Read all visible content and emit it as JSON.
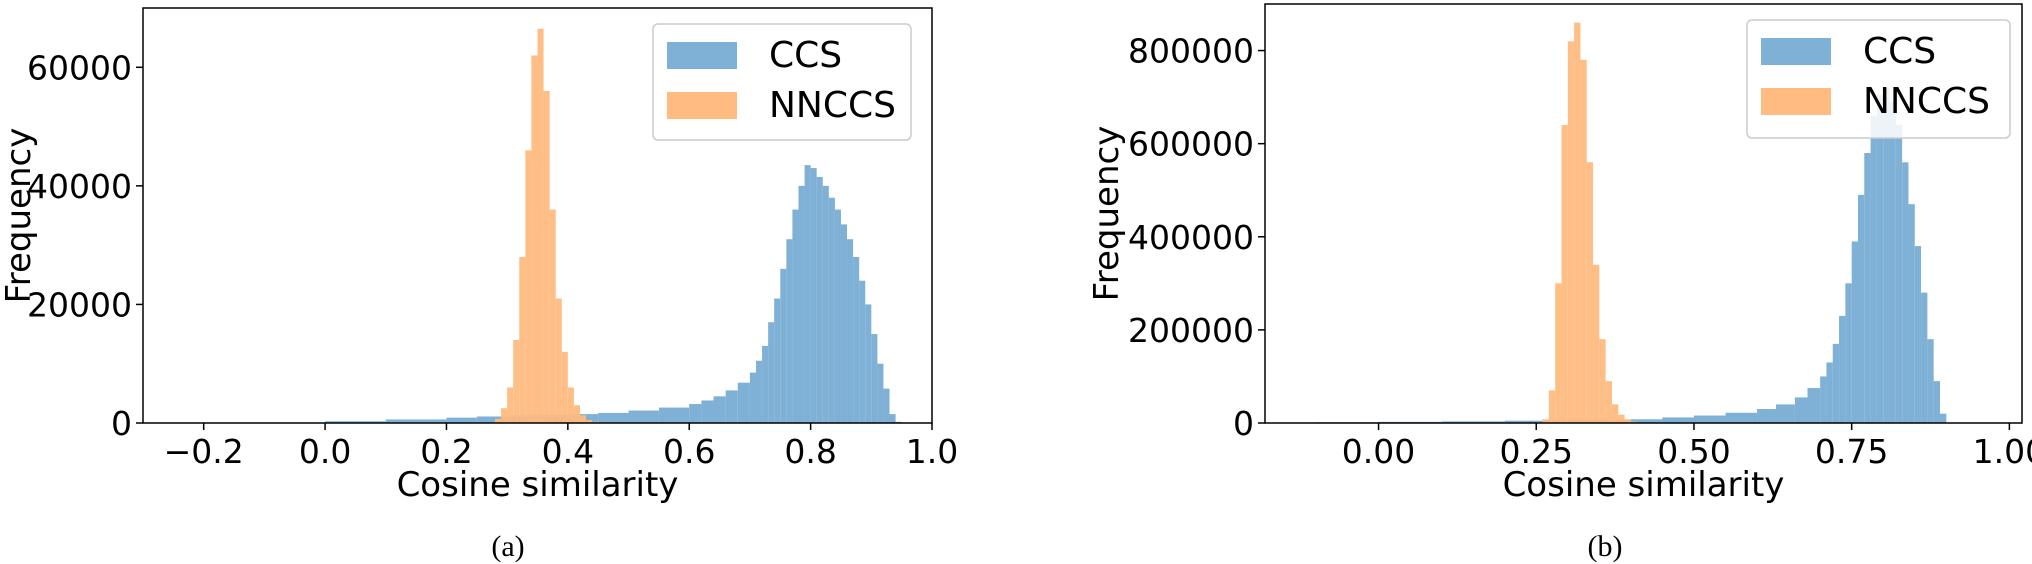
{
  "chart_data": [
    {
      "type": "histogram",
      "caption": "(a)",
      "xlabel": "Cosine similarity",
      "ylabel": "Frequency",
      "xlim": [
        -0.3,
        1.0
      ],
      "ylim": [
        0,
        70000
      ],
      "xticks": [
        -0.2,
        0.0,
        0.2,
        0.4,
        0.6,
        0.8,
        1.0
      ],
      "xtick_labels": [
        "−0.2",
        "0.0",
        "0.2",
        "0.4",
        "0.6",
        "0.8",
        "1.0"
      ],
      "yticks": [
        0,
        20000,
        40000,
        60000
      ],
      "ytick_labels": [
        "0",
        "20000",
        "40000",
        "60000"
      ],
      "legend": {
        "placement": "top-right",
        "entries": [
          "CCS",
          "NNCCS"
        ]
      },
      "series": [
        {
          "name": "CCS",
          "color": "#7fb0d5",
          "bin_edges": [
            0.0,
            0.1,
            0.2,
            0.25,
            0.3,
            0.35,
            0.4,
            0.45,
            0.5,
            0.55,
            0.6,
            0.62,
            0.64,
            0.66,
            0.68,
            0.7,
            0.71,
            0.72,
            0.73,
            0.74,
            0.75,
            0.76,
            0.77,
            0.78,
            0.79,
            0.8,
            0.81,
            0.82,
            0.83,
            0.84,
            0.85,
            0.86,
            0.87,
            0.88,
            0.89,
            0.9,
            0.91,
            0.92,
            0.93,
            0.94,
            0.95
          ],
          "counts": [
            300,
            600,
            900,
            1100,
            1300,
            1400,
            1500,
            1700,
            2100,
            2600,
            3200,
            3800,
            4500,
            5500,
            6800,
            8500,
            10500,
            13000,
            17000,
            21000,
            26000,
            31000,
            36000,
            40000,
            43500,
            43000,
            41500,
            40000,
            38000,
            36000,
            33500,
            31000,
            28000,
            24000,
            20000,
            15000,
            10000,
            5800,
            1500,
            200
          ]
        },
        {
          "name": "NNCCS",
          "color": "#ffbb80",
          "bin_edges": [
            0.28,
            0.29,
            0.3,
            0.31,
            0.32,
            0.33,
            0.34,
            0.35,
            0.36,
            0.37,
            0.38,
            0.39,
            0.4,
            0.41,
            0.42,
            0.43,
            0.44,
            0.45,
            0.46
          ],
          "counts": [
            700,
            2500,
            6000,
            14000,
            28000,
            46000,
            62000,
            66500,
            56000,
            36000,
            21000,
            12000,
            6000,
            3000,
            1300,
            500,
            200,
            60
          ]
        }
      ]
    },
    {
      "type": "histogram",
      "caption": "(b)",
      "xlabel": "Cosine similarity",
      "ylabel": "Frequency",
      "xlim": [
        -0.18,
        1.02
      ],
      "ylim": [
        0,
        900000
      ],
      "xticks": [
        0.0,
        0.25,
        0.5,
        0.75,
        1.0
      ],
      "xtick_labels": [
        "0.00",
        "0.25",
        "0.50",
        "0.75",
        "1.00"
      ],
      "yticks": [
        0,
        200000,
        400000,
        600000,
        800000
      ],
      "ytick_labels": [
        "0",
        "200000",
        "400000",
        "600000",
        "800000"
      ],
      "legend": {
        "placement": "top-right",
        "entries": [
          "CCS",
          "NNCCS"
        ]
      },
      "series": [
        {
          "name": "CCS",
          "color": "#7fb0d5",
          "bin_edges": [
            -0.1,
            0.0,
            0.1,
            0.2,
            0.3,
            0.4,
            0.45,
            0.5,
            0.55,
            0.6,
            0.63,
            0.66,
            0.68,
            0.7,
            0.71,
            0.72,
            0.73,
            0.74,
            0.75,
            0.76,
            0.77,
            0.78,
            0.79,
            0.8,
            0.81,
            0.82,
            0.83,
            0.84,
            0.85,
            0.86,
            0.87,
            0.88,
            0.89,
            0.9
          ],
          "counts": [
            1500,
            2500,
            3500,
            5000,
            6500,
            8000,
            12000,
            16000,
            22000,
            30000,
            40000,
            55000,
            75000,
            100000,
            130000,
            170000,
            230000,
            300000,
            390000,
            490000,
            580000,
            660000,
            705000,
            720000,
            690000,
            640000,
            560000,
            470000,
            380000,
            280000,
            180000,
            90000,
            20000
          ]
        },
        {
          "name": "NNCCS",
          "color": "#ffbb80",
          "bin_edges": [
            0.26,
            0.27,
            0.28,
            0.29,
            0.3,
            0.31,
            0.32,
            0.33,
            0.34,
            0.35,
            0.36,
            0.37,
            0.38,
            0.39,
            0.4,
            0.41,
            0.42
          ],
          "counts": [
            8000,
            70000,
            300000,
            640000,
            820000,
            860000,
            780000,
            560000,
            340000,
            180000,
            90000,
            40000,
            18000,
            8000,
            3000,
            1000
          ]
        }
      ]
    }
  ]
}
